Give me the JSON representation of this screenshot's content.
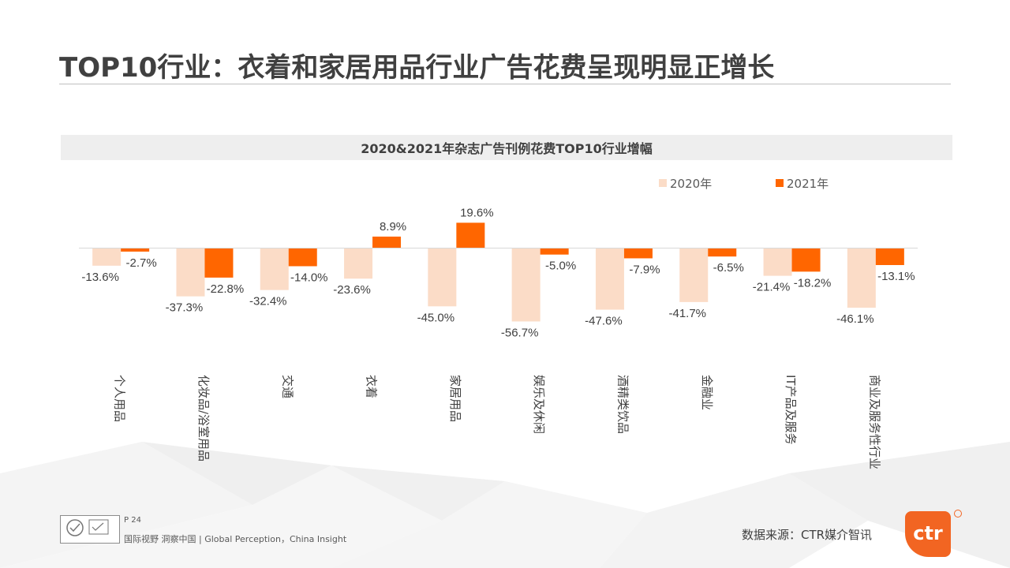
{
  "page": {
    "title": "TOP10行业：衣着和家居用品行业广告花费呈现明显正增长",
    "page_number": "P 24",
    "tagline": "国际视野  洞察中国 | Global Perception，China Insight",
    "source": "数据来源：CTR媒介智讯",
    "brand": "ctr"
  },
  "colors": {
    "series_2020": "#fbdcc7",
    "series_2021": "#ff6600",
    "title_text": "#404040",
    "header_band": "#eeeeee",
    "brand": "#f26522"
  },
  "chart_data": {
    "type": "bar",
    "title": "2020&2021年杂志广告刊例花费TOP10行业增幅",
    "categories": [
      "个人用品",
      "化妆品/浴室用品",
      "交通",
      "衣着",
      "家居用品",
      "娱乐及休闲",
      "酒精类饮品",
      "金融业",
      "IT产品及服务",
      "商业及服务性行业"
    ],
    "series": [
      {
        "name": "2020年",
        "values": [
          -13.6,
          -37.3,
          -32.4,
          -23.6,
          -45.0,
          -56.7,
          -47.6,
          -41.7,
          -21.4,
          -46.1
        ]
      },
      {
        "name": "2021年",
        "values": [
          -2.7,
          -22.8,
          -14.0,
          8.9,
          19.6,
          -5.0,
          -7.9,
          -6.5,
          -18.2,
          -13.1
        ]
      }
    ],
    "data_labels": [
      [
        "-13.6%",
        "-37.3%",
        "-32.4%",
        "-23.6%",
        "-45.0%",
        "-56.7%",
        "-47.6%",
        "-41.7%",
        "-21.4%",
        "-46.1%"
      ],
      [
        "-2.7%",
        "-22.8%",
        "-14.0%",
        "8.9%",
        "19.6%",
        "-5.0%",
        "-7.9%",
        "-6.5%",
        "-18.2%",
        "-13.1%"
      ]
    ],
    "unit": "%",
    "legend_position": "top-right",
    "grid": false
  }
}
